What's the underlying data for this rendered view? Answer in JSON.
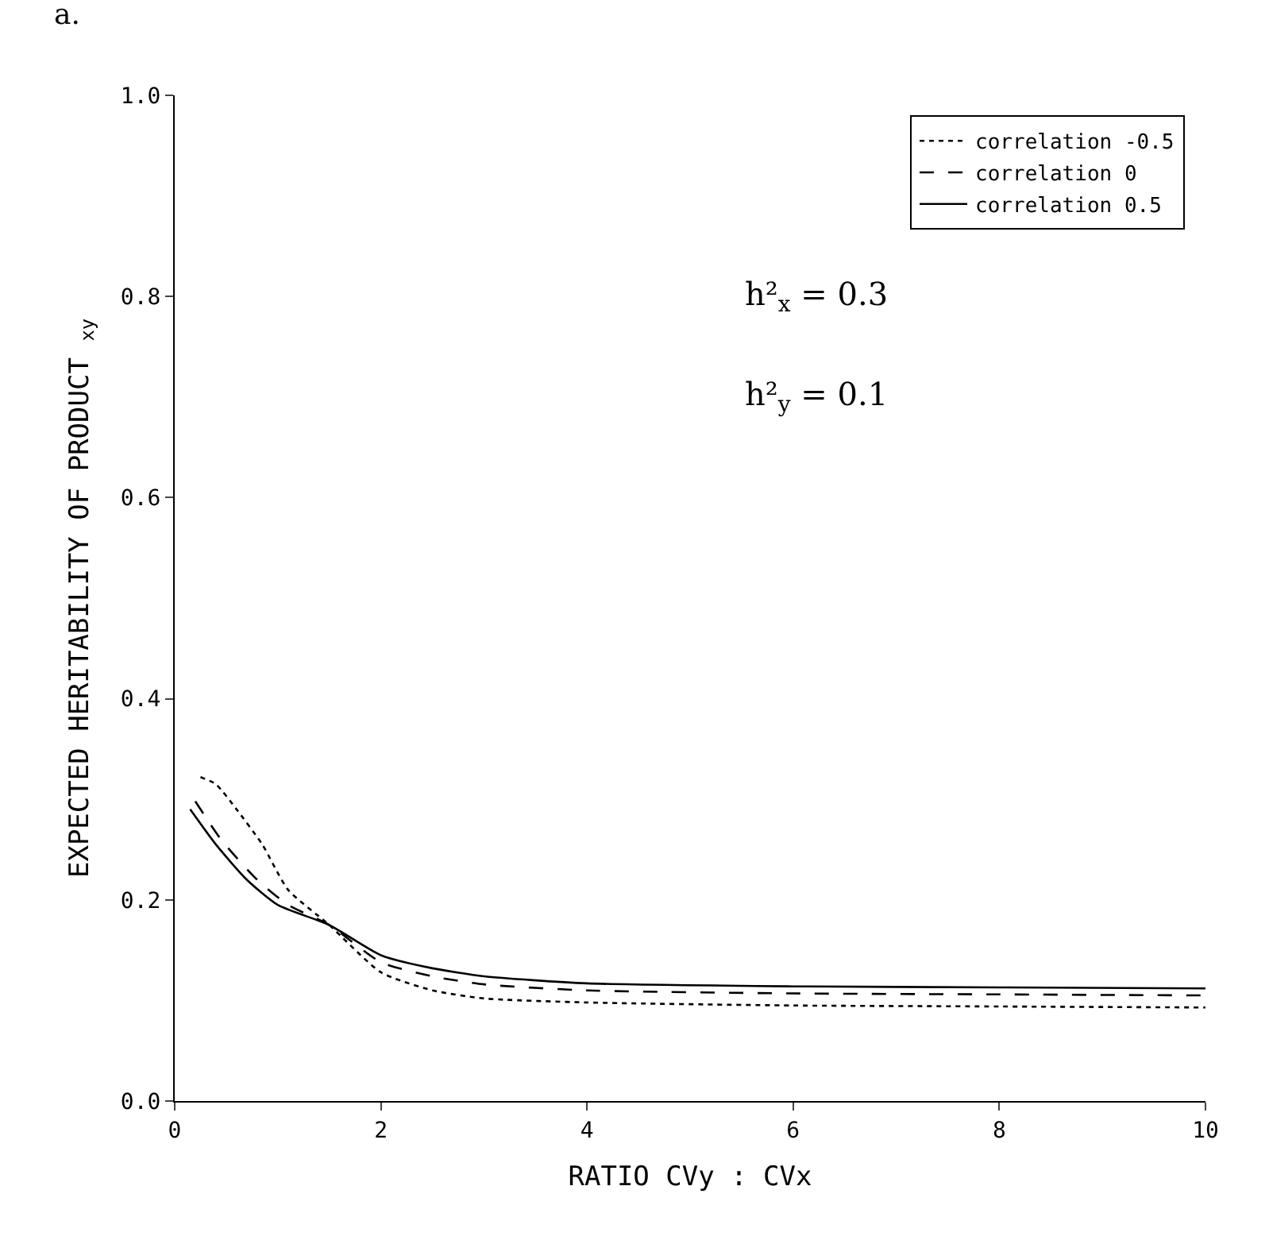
{
  "chart_data": {
    "type": "line",
    "xlabel": "RATIO CVy : CVx",
    "ylabel": "EXPECTED HERITABILITY OF PRODUCT $_{xy}$",
    "xlim": [
      0,
      10
    ],
    "xticks": [
      0,
      2,
      4,
      6,
      8,
      10
    ],
    "ylim": [
      0,
      1
    ],
    "yticks": [
      {
        "value": 0,
        "label": "0.0"
      },
      0.2,
      0.4,
      0.6,
      0.8,
      {
        "value": 1,
        "label": "1.0"
      }
    ],
    "grid": false,
    "legend": "top right",
    "marker": "none",
    "annotations": [
      "a.",
      "h²$_{x}$ = 0.3",
      "h²$_{y}$ = 0.1"
    ],
    "series": [
      {
        "name": "correlation -0.5",
        "color": "#000000",
        "line_style": "dotted",
        "x": [
          0.25,
          0.4,
          0.6,
          0.85,
          1.1,
          1.5,
          2,
          2.5,
          3,
          4,
          6,
          8,
          10
        ],
        "values": [
          0.322,
          0.315,
          0.29,
          0.255,
          0.21,
          0.175,
          0.128,
          0.11,
          0.102,
          0.098,
          0.095,
          0.094,
          0.093
        ]
      },
      {
        "name": "correlation 0",
        "color": "#000000",
        "line_style": "dashed",
        "x": [
          0.2,
          0.45,
          0.8,
          1.1,
          1.5,
          2,
          2.5,
          3,
          4,
          6,
          8,
          10
        ],
        "values": [
          0.298,
          0.26,
          0.22,
          0.195,
          0.175,
          0.138,
          0.124,
          0.116,
          0.11,
          0.107,
          0.106,
          0.105
        ]
      },
      {
        "name": "correlation 0.5",
        "color": "#000000",
        "line_style": "solid",
        "x": [
          0.15,
          0.4,
          0.7,
          1.0,
          1.5,
          2,
          2.5,
          3,
          4,
          6,
          8,
          10
        ],
        "values": [
          0.29,
          0.255,
          0.22,
          0.195,
          0.175,
          0.145,
          0.132,
          0.124,
          0.117,
          0.114,
          0.113,
          0.112
        ]
      }
    ]
  }
}
